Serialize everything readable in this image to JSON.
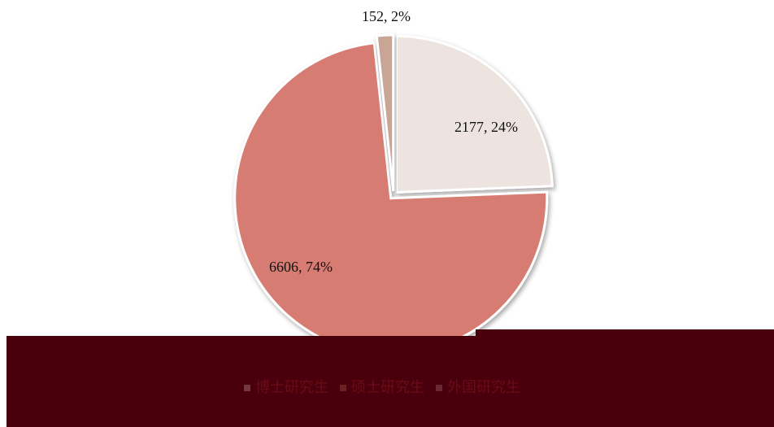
{
  "chart_data": {
    "type": "pie",
    "categories": [
      "博士研究生",
      "硕士研究生",
      "外国研究生"
    ],
    "values": [
      2177,
      6606,
      152
    ],
    "value_labels": [
      "2177, 24%",
      "6606, 74%",
      "152, 2%"
    ],
    "colors": [
      "#ede3df",
      "#d67b73",
      "#c8a595"
    ],
    "legend": "bottom"
  }
}
